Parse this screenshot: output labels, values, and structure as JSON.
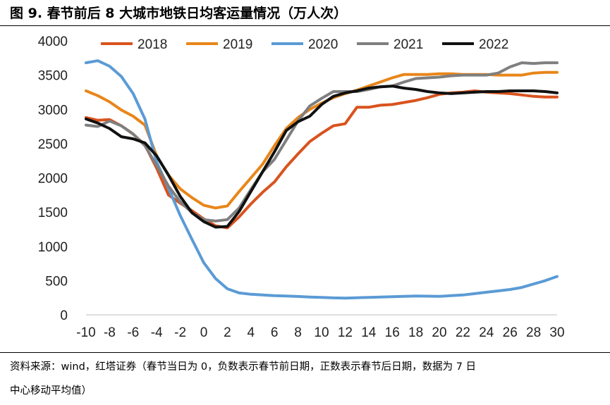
{
  "header": {
    "title": "图 9. 春节前后 8 大城市地铁日均客运量情况（万人次）"
  },
  "footer": {
    "line1": "资料来源：wind，红塔证券（春节当日为 0，负数表示春节前日期，正数表示春节后日期，数据为 7 日",
    "line2": "中心移动平均值）"
  },
  "chart_data": {
    "type": "line",
    "title": "图 9. 春节前后 8 大城市地铁日均客运量情况（万人次）",
    "xlabel": "",
    "ylabel": "",
    "xlim": [
      -10,
      30
    ],
    "ylim": [
      0,
      4000
    ],
    "x_ticks": [
      -10,
      -8,
      -6,
      -4,
      -2,
      0,
      2,
      4,
      6,
      8,
      10,
      12,
      14,
      16,
      18,
      20,
      22,
      24,
      26,
      28,
      30
    ],
    "y_ticks": [
      0,
      500,
      1000,
      1500,
      2000,
      2500,
      3000,
      3500,
      4000
    ],
    "grid": false,
    "legend_position": "top",
    "x": [
      -10,
      -9,
      -8,
      -7,
      -6,
      -5,
      -4,
      -3,
      -2,
      -1,
      0,
      1,
      2,
      3,
      4,
      5,
      6,
      7,
      8,
      9,
      10,
      11,
      12,
      13,
      14,
      15,
      16,
      17,
      18,
      19,
      20,
      21,
      22,
      23,
      24,
      25,
      26,
      27,
      28,
      29,
      30
    ],
    "series": [
      {
        "name": "2018",
        "color": "#D9531E",
        "values": [
          2880,
          2840,
          2850,
          2760,
          2640,
          2480,
          2140,
          1750,
          1630,
          1520,
          1400,
          1300,
          1270,
          1430,
          1620,
          1790,
          1940,
          2160,
          2350,
          2530,
          2650,
          2760,
          2790,
          3030,
          3030,
          3060,
          3070,
          3100,
          3130,
          3170,
          3220,
          3240,
          3250,
          3270,
          3250,
          3240,
          3230,
          3210,
          3190,
          3180,
          3180
        ]
      },
      {
        "name": "2019",
        "color": "#E8861A",
        "values": [
          3270,
          3200,
          3110,
          2990,
          2900,
          2770,
          2320,
          2040,
          1840,
          1710,
          1600,
          1560,
          1590,
          1800,
          2000,
          2200,
          2470,
          2720,
          2880,
          3000,
          3090,
          3170,
          3230,
          3280,
          3340,
          3400,
          3460,
          3510,
          3510,
          3510,
          3520,
          3520,
          3510,
          3510,
          3510,
          3500,
          3500,
          3500,
          3530,
          3540,
          3540
        ]
      },
      {
        "name": "2020",
        "color": "#5B9BD5",
        "values": [
          3680,
          3710,
          3630,
          3480,
          3230,
          2860,
          2230,
          1850,
          1450,
          1100,
          760,
          530,
          380,
          320,
          300,
          290,
          280,
          275,
          268,
          260,
          255,
          248,
          245,
          250,
          255,
          260,
          265,
          270,
          275,
          272,
          270,
          280,
          290,
          310,
          330,
          350,
          370,
          400,
          450,
          500,
          560
        ]
      },
      {
        "name": "2021",
        "color": "#7F7F7F",
        "values": [
          2770,
          2750,
          2830,
          2760,
          2640,
          2470,
          2180,
          1880,
          1650,
          1490,
          1390,
          1370,
          1390,
          1560,
          1830,
          2090,
          2270,
          2550,
          2830,
          3050,
          3160,
          3260,
          3260,
          3260,
          3290,
          3330,
          3340,
          3400,
          3450,
          3460,
          3470,
          3490,
          3500,
          3500,
          3500,
          3530,
          3620,
          3680,
          3670,
          3680,
          3680
        ]
      },
      {
        "name": "2022",
        "color": "#111111",
        "values": [
          2860,
          2800,
          2720,
          2600,
          2570,
          2510,
          2320,
          2040,
          1730,
          1490,
          1360,
          1280,
          1290,
          1510,
          1800,
          2090,
          2380,
          2690,
          2820,
          2900,
          3070,
          3190,
          3240,
          3270,
          3310,
          3330,
          3340,
          3310,
          3290,
          3260,
          3240,
          3230,
          3240,
          3250,
          3260,
          3260,
          3270,
          3270,
          3270,
          3260,
          3240
        ]
      }
    ]
  }
}
